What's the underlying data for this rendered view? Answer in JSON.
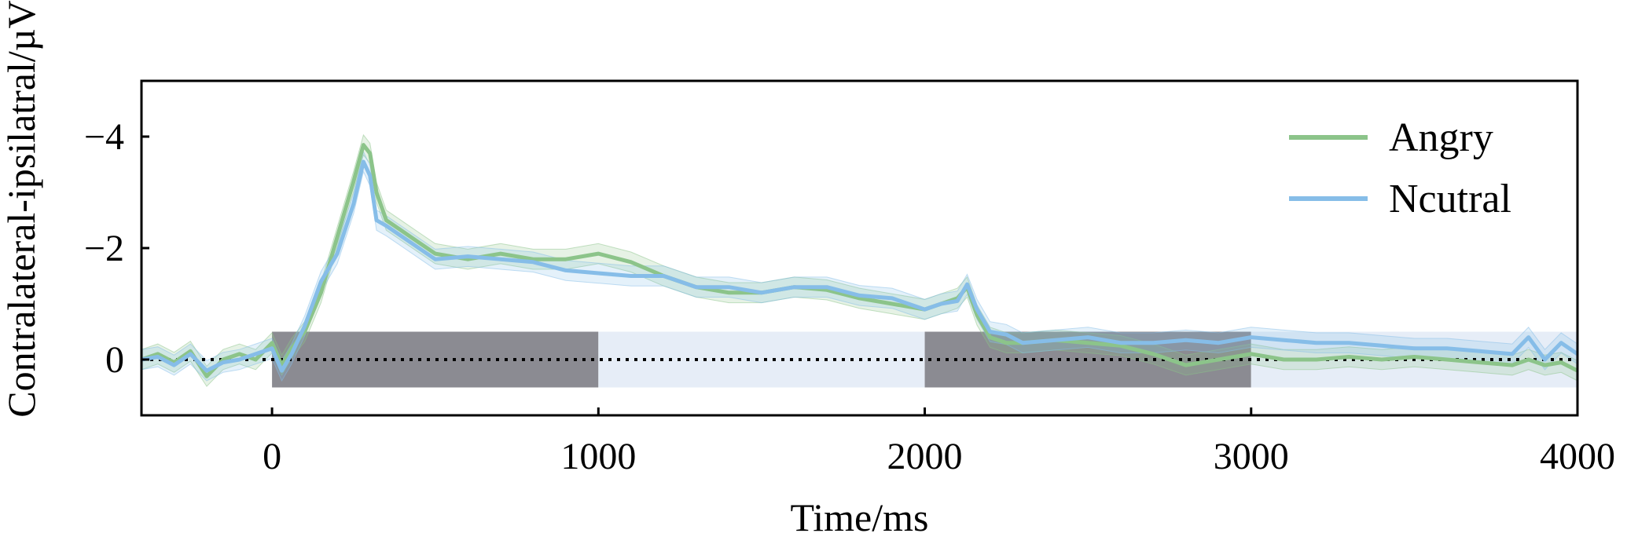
{
  "chart_data": {
    "type": "line",
    "title": "",
    "xlabel": "Time/ms",
    "ylabel": "Contralateral-ipsilatral/µV",
    "xlim": [
      -400,
      4000
    ],
    "ylim": [
      -5,
      1
    ],
    "y_inverted": true,
    "x_ticks": [
      0,
      1000,
      2000,
      3000,
      4000
    ],
    "x_tick_labels": [
      "0",
      "1000",
      "2000",
      "3000",
      "4000"
    ],
    "y_ticks": [
      -4,
      -2,
      0
    ],
    "y_tick_labels": [
      "−4",
      "−2",
      "0"
    ],
    "grid": false,
    "legend_position": "top-right",
    "zero_line": "dotted",
    "background_bands": [
      {
        "from": 0,
        "to": 1000,
        "tone": "dark",
        "color": "#8b8b92"
      },
      {
        "from": 1000,
        "to": 2000,
        "tone": "light",
        "color": "#e6edf7"
      },
      {
        "from": 2000,
        "to": 3000,
        "tone": "dark",
        "color": "#8b8b92"
      },
      {
        "from": 3000,
        "to": 4000,
        "tone": "light",
        "color": "#e6edf7"
      }
    ],
    "series": [
      {
        "name": "Angry",
        "color": "#8cc48a",
        "x": [
          -400,
          -350,
          -300,
          -250,
          -200,
          -150,
          -100,
          -50,
          0,
          30,
          60,
          100,
          150,
          200,
          250,
          280,
          300,
          320,
          350,
          400,
          450,
          500,
          600,
          700,
          800,
          900,
          1000,
          1100,
          1200,
          1300,
          1400,
          1500,
          1600,
          1700,
          1800,
          1900,
          2000,
          2050,
          2100,
          2130,
          2160,
          2200,
          2250,
          2300,
          2400,
          2500,
          2600,
          2700,
          2800,
          2900,
          3000,
          3100,
          3200,
          3300,
          3400,
          3500,
          3600,
          3700,
          3800,
          3850,
          3900,
          3950,
          4000
        ],
        "y": [
          0,
          -0.1,
          0.05,
          -0.15,
          0.3,
          0,
          -0.1,
          0,
          -0.3,
          0.1,
          -0.2,
          -0.5,
          -1.2,
          -2.2,
          -3.2,
          -3.85,
          -3.7,
          -3.0,
          -2.5,
          -2.3,
          -2.1,
          -1.9,
          -1.8,
          -1.9,
          -1.8,
          -1.8,
          -1.9,
          -1.75,
          -1.5,
          -1.3,
          -1.2,
          -1.2,
          -1.3,
          -1.25,
          -1.1,
          -1.0,
          -0.9,
          -1.0,
          -1.1,
          -1.3,
          -0.8,
          -0.4,
          -0.3,
          -0.3,
          -0.35,
          -0.3,
          -0.25,
          -0.1,
          0.1,
          0,
          -0.1,
          0,
          0,
          -0.05,
          0,
          -0.05,
          0,
          0.05,
          0.1,
          0,
          0.1,
          0.05,
          0.2
        ]
      },
      {
        "name": "Ncutral",
        "color": "#86bde8",
        "x": [
          -400,
          -350,
          -300,
          -250,
          -200,
          -150,
          -100,
          -50,
          0,
          30,
          60,
          100,
          150,
          200,
          250,
          280,
          300,
          320,
          350,
          400,
          450,
          500,
          600,
          700,
          800,
          900,
          1000,
          1100,
          1200,
          1300,
          1400,
          1500,
          1600,
          1700,
          1800,
          1900,
          2000,
          2050,
          2100,
          2130,
          2160,
          2200,
          2250,
          2300,
          2400,
          2500,
          2600,
          2700,
          2800,
          2900,
          3000,
          3100,
          3200,
          3300,
          3400,
          3500,
          3600,
          3700,
          3800,
          3850,
          3900,
          3950,
          4000
        ],
        "y": [
          0,
          -0.05,
          0.1,
          -0.1,
          0.2,
          0.05,
          0,
          -0.1,
          -0.2,
          0.2,
          -0.1,
          -0.6,
          -1.4,
          -1.9,
          -2.8,
          -3.55,
          -3.3,
          -2.5,
          -2.4,
          -2.2,
          -2.0,
          -1.8,
          -1.85,
          -1.8,
          -1.75,
          -1.6,
          -1.55,
          -1.5,
          -1.5,
          -1.3,
          -1.3,
          -1.2,
          -1.3,
          -1.3,
          -1.15,
          -1.1,
          -0.9,
          -1.0,
          -1.05,
          -1.35,
          -0.9,
          -0.5,
          -0.45,
          -0.3,
          -0.35,
          -0.4,
          -0.3,
          -0.3,
          -0.35,
          -0.3,
          -0.4,
          -0.35,
          -0.3,
          -0.3,
          -0.25,
          -0.2,
          -0.2,
          -0.15,
          -0.1,
          -0.4,
          0,
          -0.3,
          -0.1
        ]
      }
    ]
  }
}
